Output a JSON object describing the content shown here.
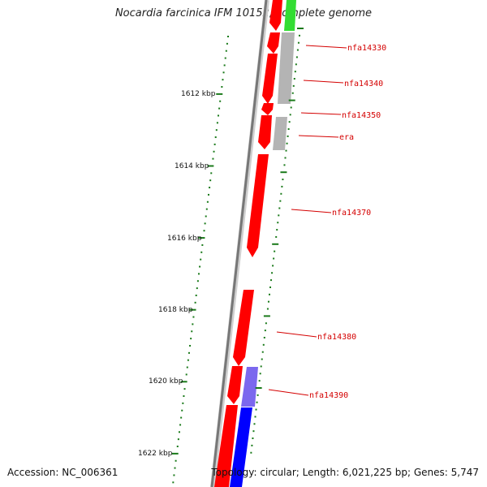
{
  "title": "Nocardia farcinica IFM 10152, complete genome",
  "footer": {
    "accession": "Accession: NC_006361",
    "summary": "Topology: circular; Length: 6,021,225 bp; Genes: 5,747"
  },
  "colors": {
    "forward_gene": "#ff0000",
    "reverse_gene": "#0000ff",
    "reverse_gene_light": "#7b68ee",
    "grey_gene": "#b4b4b4",
    "green_gene": "#33dd33",
    "ticks": "#1a7a1a",
    "backbone": "#888888",
    "label": "#d40000"
  },
  "ruler": {
    "labels": [
      "1612 kbp",
      "1614 kbp",
      "1616 kbp",
      "1618 kbp",
      "1620 kbp",
      "1622 kbp"
    ]
  },
  "genes": [
    {
      "label": "nfa14330"
    },
    {
      "label": "nfa14340"
    },
    {
      "label": "nfa14350"
    },
    {
      "label": "era"
    },
    {
      "label": "nfa14370"
    },
    {
      "label": "nfa14380"
    },
    {
      "label": "nfa14390"
    }
  ]
}
